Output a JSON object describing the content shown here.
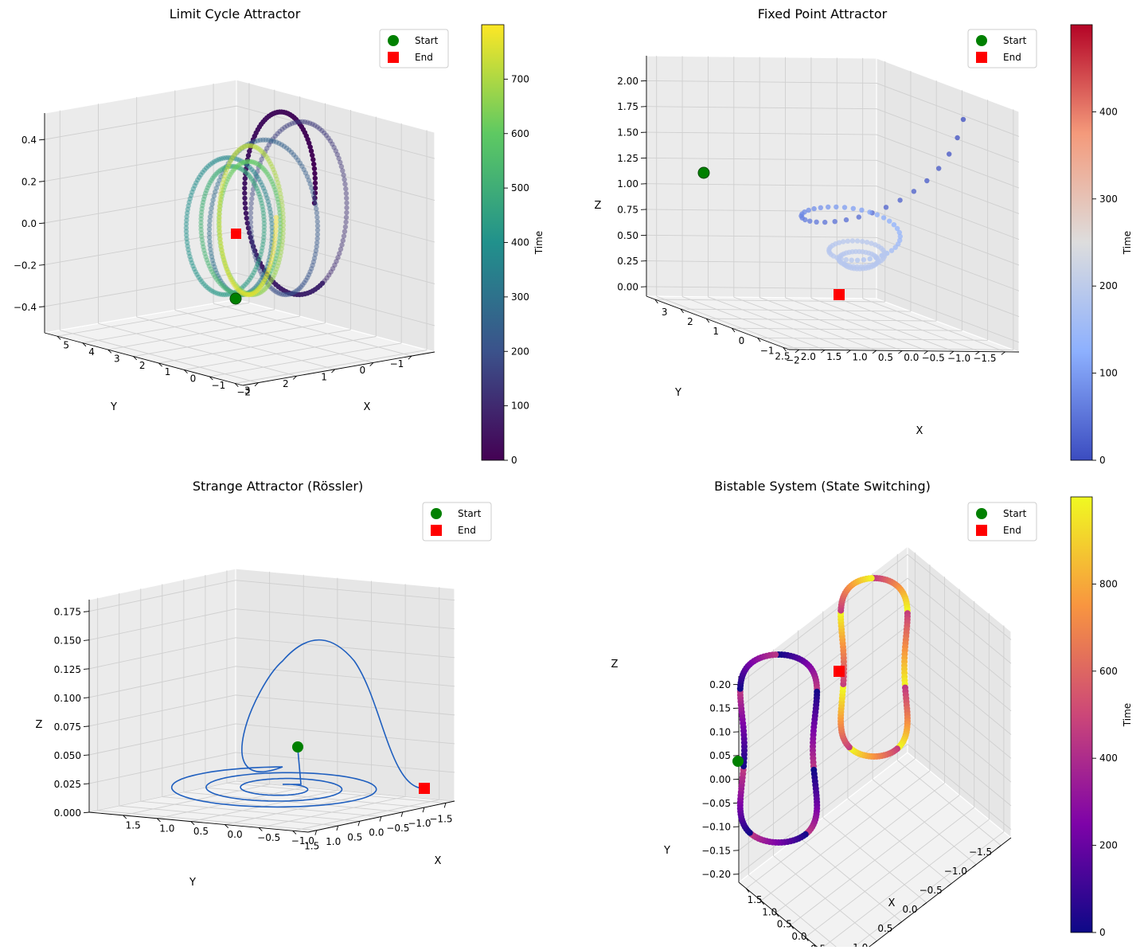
{
  "chart_data": [
    {
      "type": "scatter",
      "title": "Limit Cycle Attractor",
      "xlabel": "X",
      "ylabel": "Y",
      "zlabel": "",
      "xlim": [
        -2.2,
        5.6
      ],
      "ylim": [
        -1.6,
        3.4
      ],
      "zlim": [
        -0.55,
        0.55
      ],
      "xticks": [
        "−2",
        "−1",
        "0",
        "1",
        "2",
        "3",
        "4",
        "5"
      ],
      "yticks": [
        "−1",
        "0",
        "1",
        "2",
        "3"
      ],
      "zticks": [
        "−0.4",
        "−0.2",
        "0.0",
        "0.2",
        "0.4"
      ],
      "colormap": "viridis",
      "colorbar": {
        "label": "Time",
        "min": 0,
        "max": 800,
        "ticks": [
          "0",
          "100",
          "200",
          "300",
          "400",
          "500",
          "600",
          "700"
        ]
      },
      "legend": [
        "Start",
        "End"
      ],
      "start_color": "#008000",
      "end_color": "#ff0000",
      "series": [
        {
          "values_description_free": true,
          "n_points": 800
        }
      ]
    },
    {
      "type": "scatter",
      "title": "Fixed Point Attractor",
      "xlabel": "X",
      "ylabel": "Y",
      "zlabel": "Z",
      "xlim": [
        -2.2,
        3.3
      ],
      "ylim": [
        -1.7,
        2.7
      ],
      "zlim": [
        -0.1,
        2.1
      ],
      "xticks": [
        "−2",
        "−1",
        "0",
        "1",
        "2",
        "3"
      ],
      "yticks": [
        "−1.5",
        "−1.0",
        "−0.5",
        "0.0",
        "0.5",
        "1.0",
        "1.5",
        "2.0",
        "2.5"
      ],
      "zticks": [
        "0.00",
        "0.25",
        "0.50",
        "0.75",
        "1.00",
        "1.25",
        "1.50",
        "1.75",
        "2.00"
      ],
      "colormap": "coolwarm",
      "colorbar": {
        "label": "Time",
        "min": 0,
        "max": 500,
        "ticks": [
          "0",
          "100",
          "200",
          "300",
          "400"
        ]
      },
      "legend": [
        "Start",
        "End"
      ],
      "start_color": "#008000",
      "end_color": "#ff0000"
    },
    {
      "type": "line",
      "title": "Strange Attractor (Rössler)",
      "xlabel": "X",
      "ylabel": "Y",
      "zlabel": "Z",
      "xlim": [
        -1.3,
        1.8
      ],
      "ylim": [
        -1.7,
        1.7
      ],
      "zlim": [
        0.0,
        0.18
      ],
      "xticks": [
        "−1.0",
        "−0.5",
        "0.0",
        "0.5",
        "1.0",
        "1.5"
      ],
      "yticks": [
        "−1.5",
        "−1.0",
        "−0.5",
        "0.0",
        "0.5",
        "1.0",
        "1.5"
      ],
      "zticks": [
        "0.000",
        "0.025",
        "0.050",
        "0.075",
        "0.100",
        "0.125",
        "0.150",
        "0.175"
      ],
      "line_color": "#1f5fbf",
      "legend": [
        "Start",
        "End"
      ],
      "start_color": "#008000",
      "end_color": "#ff0000"
    },
    {
      "type": "scatter",
      "title": "Bistable System (State Switching)",
      "xlabel": "X",
      "ylabel": "Y",
      "zlabel": "Z",
      "xlim": [
        -1.7,
        1.7
      ],
      "ylim": [
        -1.7,
        1.7
      ],
      "zlim": [
        -0.22,
        0.22
      ],
      "xticks": [
        "−1.5",
        "−1.0",
        "−0.5",
        "0.0",
        "0.5",
        "1.0",
        "1.5"
      ],
      "yticks": [
        "−1.5",
        "−1.0",
        "−0.5",
        "0.0",
        "0.5",
        "1.0",
        "1.5"
      ],
      "zticks": [
        "−0.20",
        "−0.15",
        "−0.10",
        "−0.05",
        "0.00",
        "0.05",
        "0.10",
        "0.15",
        "0.20"
      ],
      "colormap": "plasma",
      "colorbar": {
        "label": "Time",
        "min": 0,
        "max": 1000,
        "ticks": [
          "0",
          "200",
          "400",
          "600",
          "800"
        ]
      },
      "legend": [
        "Start",
        "End"
      ],
      "start_color": "#008000",
      "end_color": "#ff0000"
    }
  ]
}
